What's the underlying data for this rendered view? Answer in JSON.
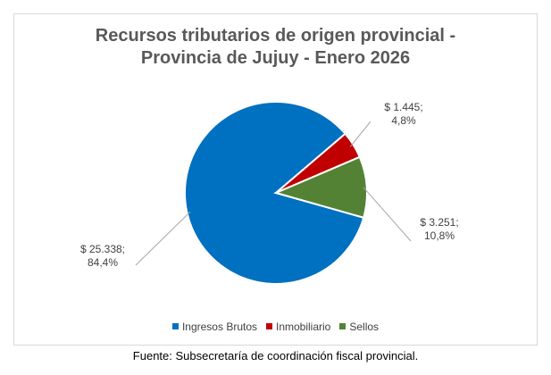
{
  "chart_data": {
    "type": "pie",
    "title_lines": [
      "Recursos tributarios de origen provincial -",
      "Provincia de Jujuy - Enero 2026"
    ],
    "slices": [
      {
        "name": "Ingresos Brutos",
        "value": 25338,
        "percent": 84.4,
        "color": "#0070C0",
        "label_lines": [
          "$ 25.338;",
          "84,4%"
        ]
      },
      {
        "name": "Inmobiliario",
        "value": 1445,
        "percent": 4.8,
        "color": "#C00000",
        "label_lines": [
          "$ 1.445;",
          "4,8%"
        ]
      },
      {
        "name": "Sellos",
        "value": 3251,
        "percent": 10.8,
        "color": "#548235",
        "label_lines": [
          "$ 3.251;",
          "10,8%"
        ]
      }
    ],
    "legend_position": "bottom"
  },
  "source": "Fuente: Subsecretaría de coordinación fiscal provincial."
}
